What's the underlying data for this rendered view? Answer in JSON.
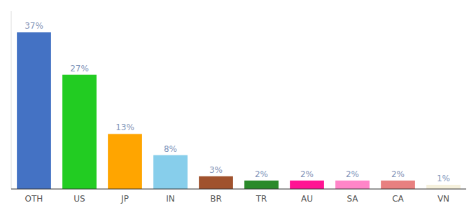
{
  "chart_data": {
    "type": "bar",
    "categories": [
      "OTH",
      "US",
      "JP",
      "IN",
      "BR",
      "TR",
      "AU",
      "SA",
      "CA",
      "VN"
    ],
    "values": [
      37,
      27,
      13,
      8,
      3,
      2,
      2,
      2,
      2,
      1
    ],
    "value_labels": [
      "37%",
      "27%",
      "13%",
      "8%",
      "3%",
      "2%",
      "2%",
      "2%",
      "2%",
      "1%"
    ],
    "colors": [
      "#4472C4",
      "#22CC22",
      "#FFA500",
      "#87CEEB",
      "#A0522D",
      "#2A8A2A",
      "#FF1493",
      "#FF85C8",
      "#E88080",
      "#F5F0DC"
    ],
    "ylim": [
      0,
      42
    ],
    "grid": false,
    "data_labels": true,
    "tick_labels": "x"
  }
}
